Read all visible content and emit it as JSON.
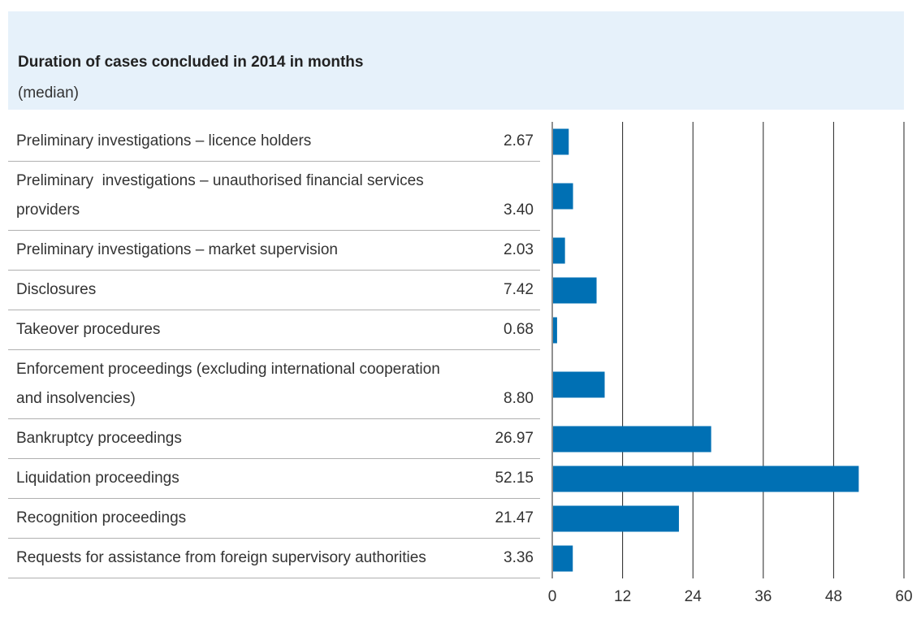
{
  "chart_data": {
    "type": "bar",
    "orientation": "horizontal",
    "title": "Duration of cases concluded in 2014 in months",
    "subtitle": "(median)",
    "categories": [
      "Preliminary investigations – licence holders",
      "Preliminary  investigations – unauthorised financial services providers",
      "Preliminary investigations – market supervision",
      "Disclosures",
      "Takeover procedures",
      "Enforcement proceedings (excluding international cooperation and insolvencies)",
      "Bankruptcy proceedings",
      "Liquidation proceedings",
      "Recognition proceedings",
      "Requests for assistance from foreign supervisory authorities"
    ],
    "values": [
      2.67,
      3.4,
      2.03,
      7.42,
      0.68,
      8.8,
      26.97,
      52.15,
      21.47,
      3.36
    ],
    "value_labels": [
      "2.67",
      "3.40",
      "2.03",
      "7.42",
      "0.68",
      "8.80",
      "26.97",
      "52.15",
      "21.47",
      "3.36"
    ],
    "color": "#0070b4",
    "xlim": [
      0,
      60
    ],
    "xticks": [
      0,
      12,
      24,
      36,
      48,
      60
    ],
    "grid": true
  }
}
